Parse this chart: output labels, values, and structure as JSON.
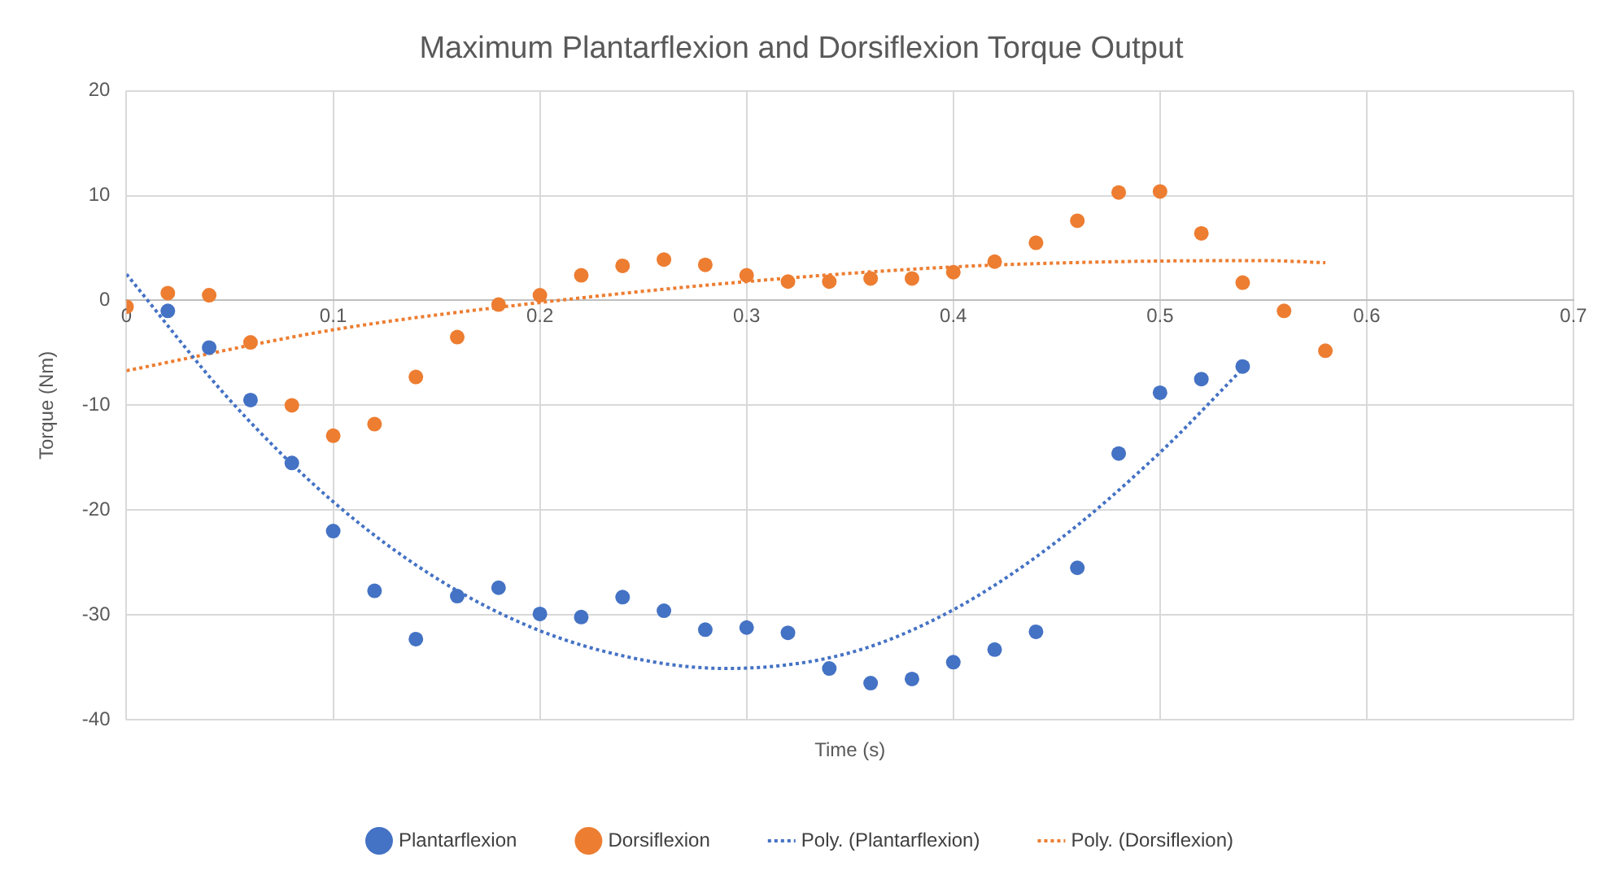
{
  "chart_data": {
    "type": "scatter",
    "title": "Maximum Plantarflexion and Dorsiflexion Torque Output",
    "xlabel": "Time (s)",
    "ylabel": "Torque (Nm)",
    "xlim": [
      0,
      0.7
    ],
    "xticks": [
      0,
      0.1,
      0.2,
      0.3,
      0.4,
      0.5,
      0.6,
      0.7
    ],
    "ylim": [
      -40,
      20
    ],
    "yticks": [
      -40,
      -30,
      -20,
      -10,
      0,
      10,
      20
    ],
    "grid": true,
    "legend": "bottom",
    "marker": "circle",
    "series": [
      {
        "name": "Plantarflexion",
        "color": "#4472c4",
        "x": [
          0.02,
          0.04,
          0.06,
          0.08,
          0.1,
          0.12,
          0.14,
          0.16,
          0.18,
          0.2,
          0.22,
          0.24,
          0.26,
          0.28,
          0.3,
          0.32,
          0.34,
          0.36,
          0.38,
          0.4,
          0.42,
          0.44,
          0.46,
          0.48,
          0.5,
          0.52,
          0.54
        ],
        "values": [
          -1.0,
          -4.5,
          -9.5,
          -15.5,
          -22,
          -27.7,
          -32.3,
          -28.2,
          -27.4,
          -29.9,
          -30.2,
          -28.3,
          -29.6,
          -31.4,
          -31.2,
          -31.7,
          -35.1,
          -36.5,
          -36.1,
          -34.5,
          -33.3,
          -31.6,
          -25.5,
          -14.6,
          -8.8,
          -7.5,
          -6.3
        ]
      },
      {
        "name": "Dorsiflexion",
        "color": "#ed7d31",
        "x": [
          0,
          0.02,
          0.04,
          0.06,
          0.08,
          0.1,
          0.12,
          0.14,
          0.16,
          0.18,
          0.2,
          0.22,
          0.24,
          0.26,
          0.28,
          0.3,
          0.32,
          0.34,
          0.36,
          0.38,
          0.4,
          0.42,
          0.44,
          0.46,
          0.48,
          0.5,
          0.52,
          0.54,
          0.56,
          0.58
        ],
        "values": [
          -0.6,
          0.7,
          0.5,
          -4,
          -10,
          -12.9,
          -11.8,
          -7.3,
          -3.5,
          -0.4,
          0.5,
          2.4,
          3.3,
          3.9,
          3.4,
          2.4,
          1.8,
          1.8,
          2.1,
          2.1,
          2.7,
          3.7,
          5.5,
          7.6,
          10.3,
          10.4,
          6.4,
          1.7,
          -1.0,
          -4.8
        ]
      },
      {
        "name": "Poly. (Plantarflexion)",
        "type": "line",
        "color": "#4472c4",
        "line_style": "dotted",
        "marker": "none",
        "x": [
          0,
          0.05,
          0.1,
          0.15,
          0.2,
          0.25,
          0.29,
          0.35,
          0.4,
          0.45,
          0.5,
          0.54
        ],
        "values": [
          2.5,
          -9.5,
          -19.2,
          -26.5,
          -31.5,
          -34.3,
          -35.1,
          -33.6,
          -29.5,
          -23.0,
          -14.5,
          -6.5
        ]
      },
      {
        "name": "Poly. (Dorsiflexion)",
        "type": "line",
        "color": "#ed7d31",
        "line_style": "dotted",
        "marker": "none",
        "x": [
          0,
          0.1,
          0.2,
          0.3,
          0.4,
          0.48,
          0.55,
          0.58
        ],
        "values": [
          -6.7,
          -2.8,
          -0.2,
          1.8,
          3.2,
          3.7,
          3.8,
          3.6
        ]
      }
    ]
  }
}
